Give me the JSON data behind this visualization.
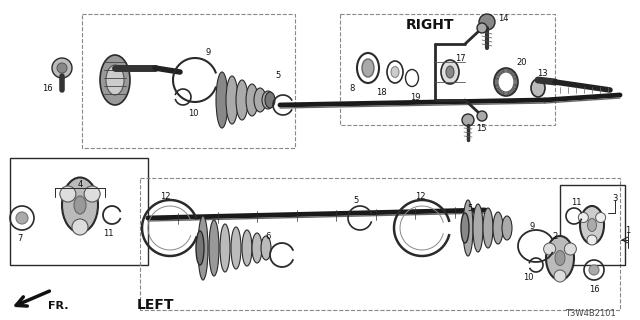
{
  "bg_color": "#ffffff",
  "lc": "#2a2a2a",
  "gray_fill": "#cccccc",
  "dark_fill": "#555555",
  "title_right": "RIGHT",
  "title_left": "LEFT",
  "fr_label": "FR.",
  "part_number": "T3W4B2101",
  "figsize": [
    6.4,
    3.2
  ],
  "dpi": 100
}
